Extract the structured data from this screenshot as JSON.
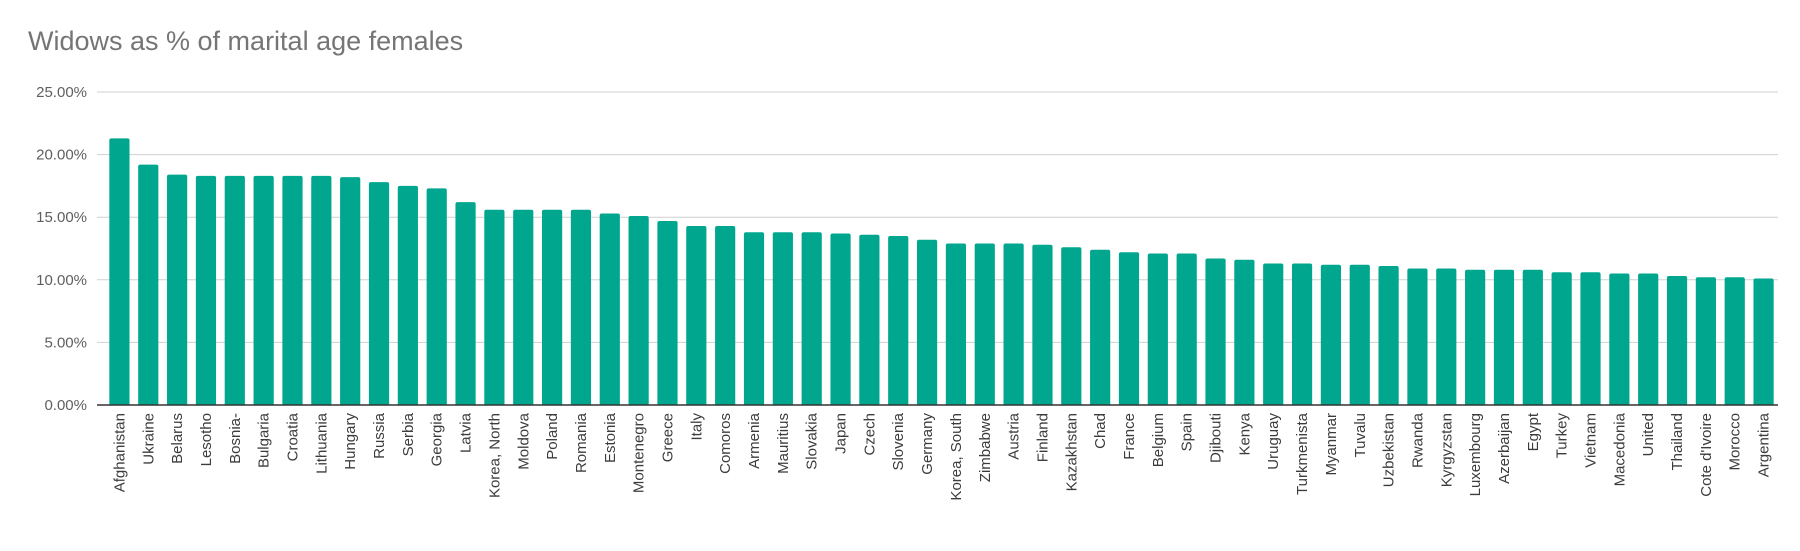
{
  "chart_data": {
    "type": "bar",
    "title": "Widows as % of marital age females",
    "xlabel": "",
    "ylabel": "",
    "ylim": [
      0,
      25
    ],
    "yticks": [
      "0.00%",
      "5.00%",
      "10.00%",
      "15.00%",
      "20.00%",
      "25.00%"
    ],
    "grid": true,
    "legend": "none",
    "bar_color": "#00a78e",
    "categories": [
      "Afghanistan",
      "Ukraine",
      "Belarus",
      "Lesotho",
      "Bosnia-",
      "Bulgaria",
      "Croatia",
      "Lithuania",
      "Hungary",
      "Russia",
      "Serbia",
      "Georgia",
      "Latvia",
      "Korea, North",
      "Moldova",
      "Poland",
      "Romania",
      "Estonia",
      "Montenegro",
      "Greece",
      "Italy",
      "Comoros",
      "Armenia",
      "Mauritius",
      "Slovakia",
      "Japan",
      "Czech",
      "Slovenia",
      "Germany",
      "Korea, South",
      "Zimbabwe",
      "Austria",
      "Finland",
      "Kazakhstan",
      "Chad",
      "France",
      "Belgium",
      "Spain",
      "Djibouti",
      "Kenya",
      "Uruguay",
      "Turkmenista",
      "Myanmar",
      "Tuvalu",
      "Uzbekistan",
      "Rwanda",
      "Kyrgyzstan",
      "Luxembourg",
      "Azerbaijan",
      "Egypt",
      "Turkey",
      "Vietnam",
      "Macedonia",
      "United",
      "Thailand",
      "Cote d'Ivoire",
      "Morocco",
      "Argentina"
    ],
    "values": [
      21.3,
      19.2,
      18.4,
      18.3,
      18.3,
      18.3,
      18.3,
      18.3,
      18.2,
      17.8,
      17.5,
      17.3,
      16.2,
      15.6,
      15.6,
      15.6,
      15.6,
      15.3,
      15.1,
      14.7,
      14.3,
      14.3,
      13.8,
      13.8,
      13.8,
      13.7,
      13.6,
      13.5,
      13.2,
      12.9,
      12.9,
      12.9,
      12.8,
      12.6,
      12.4,
      12.2,
      12.1,
      12.1,
      11.7,
      11.6,
      11.3,
      11.3,
      11.2,
      11.2,
      11.1,
      10.9,
      10.9,
      10.8,
      10.8,
      10.8,
      10.6,
      10.6,
      10.5,
      10.5,
      10.3,
      10.2,
      10.2,
      10.1
    ]
  }
}
